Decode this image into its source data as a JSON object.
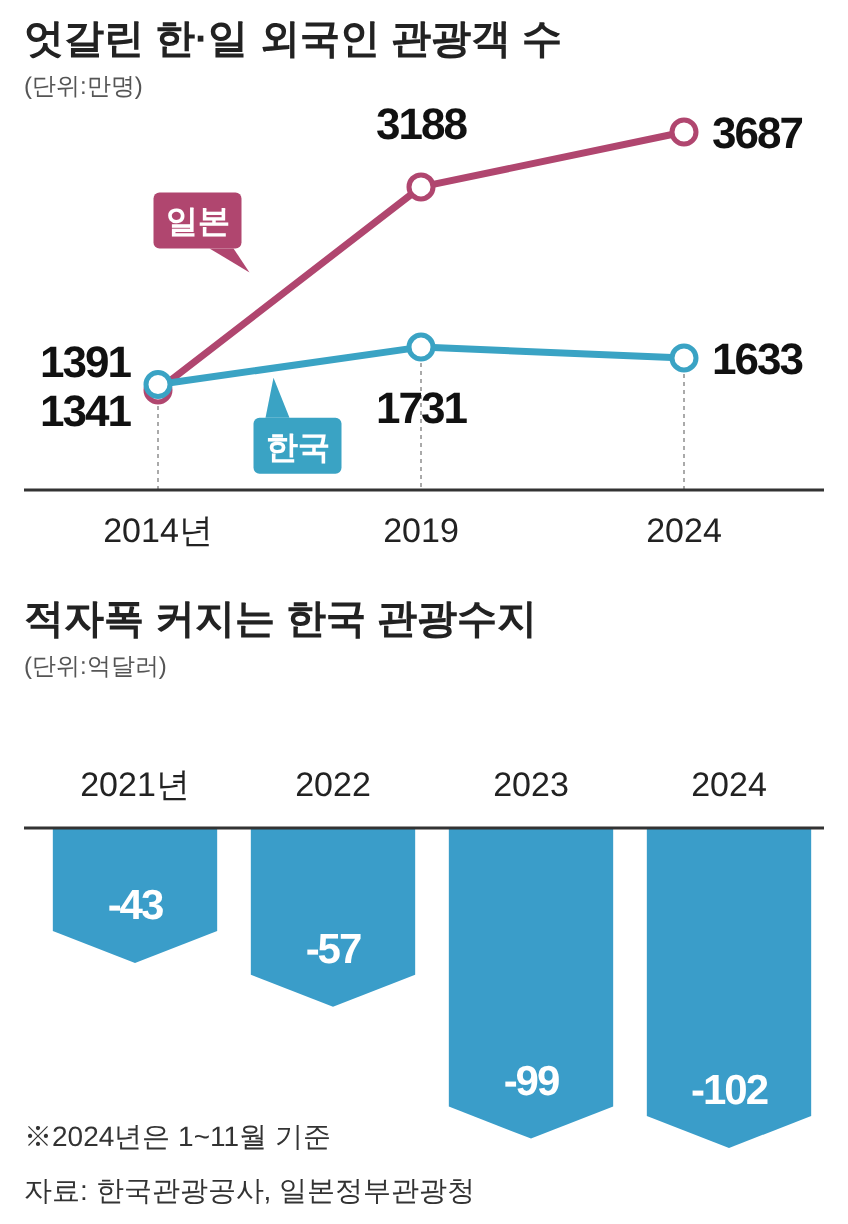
{
  "chart_data": [
    {
      "type": "line",
      "title": "엇갈린 한·일 외국인 관광객 수",
      "subtitle": "(단위:만명)",
      "categories": [
        "2014년",
        "2019",
        "2024"
      ],
      "series": [
        {
          "name": "일본",
          "color": "#b0466f",
          "values": [
            1341,
            3188,
            3687
          ]
        },
        {
          "name": "한국",
          "color": "#3aa3c4",
          "values": [
            1391,
            1731,
            1633
          ]
        }
      ],
      "data_labels": true,
      "marker": "circle",
      "tick_labels": "x"
    },
    {
      "type": "bar",
      "title": "적자폭 커지는 한국 관광수지",
      "subtitle": "(단위:억달러)",
      "categories": [
        "2021년",
        "2022",
        "2023",
        "2024"
      ],
      "values": [
        -43,
        -57,
        -99,
        -102
      ],
      "color": "#3a9dc9",
      "data_labels": true,
      "tick_labels": "x",
      "annotations": [
        "※2024년은 1~11월 기준",
        "자료: 한국관광공사, 일본정부관광청"
      ]
    }
  ]
}
